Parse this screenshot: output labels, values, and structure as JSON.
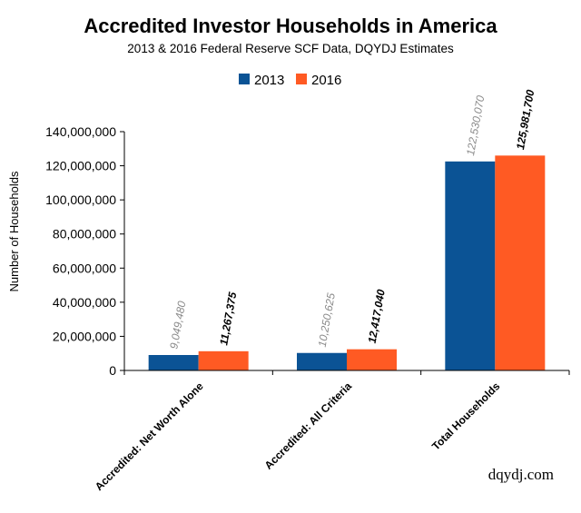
{
  "chart_data": {
    "type": "bar",
    "title": "Accredited Investor Households in America",
    "subtitle": "2013 & 2016 Federal Reserve SCF Data, DQYDJ Estimates",
    "ylabel": "Number of Households",
    "xlabel": "",
    "categories": [
      "Accredited: Net Worth Alone",
      "Accredited: All Criteria",
      "Total Households"
    ],
    "series": [
      {
        "name": "2013",
        "color": "#0B5395",
        "values": [
          9049480,
          10250625,
          122530070
        ],
        "labels": [
          "9,049,480",
          "10,250,625",
          "122,530,070"
        ]
      },
      {
        "name": "2016",
        "color": "#FF5A23",
        "values": [
          11267375,
          12417040,
          125981700
        ],
        "labels": [
          "11,267,375",
          "12,417,040",
          "125,981,700"
        ]
      }
    ],
    "ylim": [
      0,
      140000000
    ],
    "yticks": [
      "0",
      "20,000,000",
      "40,000,000",
      "60,000,000",
      "80,000,000",
      "100,000,000",
      "120,000,000",
      "140,000,000"
    ],
    "legend_position": "top-center",
    "grid": false,
    "watermark": "dqydj.com",
    "label_colors": {
      "2013": "#8a8a8a",
      "2016": "#000000"
    }
  }
}
